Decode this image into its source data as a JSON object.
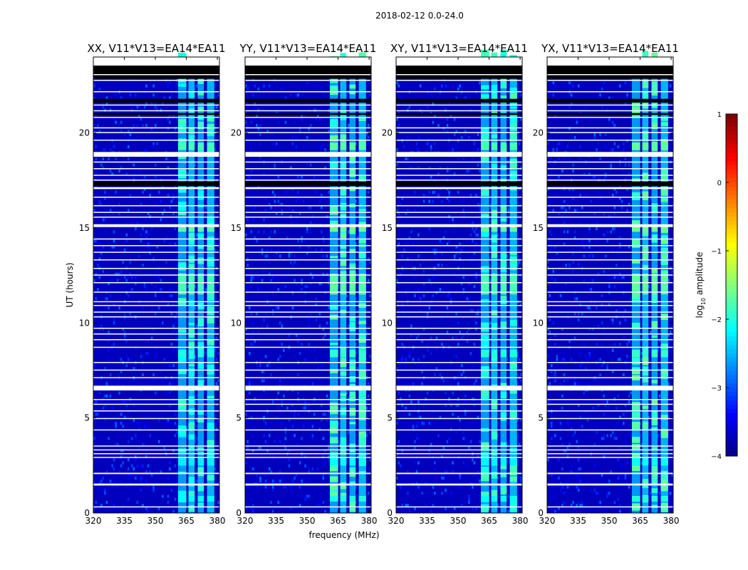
{
  "chart_data": {
    "type": "heatmap",
    "suptitle": "2018-02-12 0.0-24.0",
    "xlabel": "frequency (MHz)",
    "ylabel": "UT (hours)",
    "xlim": [
      320,
      381
    ],
    "ylim": [
      0,
      24
    ],
    "xticks": [
      "320",
      "335",
      "350",
      "365",
      "380"
    ],
    "yticks": [
      "0",
      "5",
      "10",
      "15",
      "20"
    ],
    "xtick_values": [
      320,
      335,
      350,
      365,
      380
    ],
    "ytick_values": [
      0,
      5,
      10,
      15,
      20
    ],
    "panels": [
      {
        "title": "XX, V11*V13=EA14*EA11"
      },
      {
        "title": "YY, V11*V13=EA14*EA11"
      },
      {
        "title": "XY, V11*V13=EA14*EA11"
      },
      {
        "title": "YX, V11*V13=EA14*EA11"
      }
    ],
    "colorbar": {
      "label": "log10 amplitude",
      "label_main": "log",
      "label_sub": "10",
      "label_rest": " amplitude",
      "range": [
        -4,
        1
      ],
      "ticks": [
        "1",
        "0",
        "−1",
        "−2",
        "−3",
        "−4"
      ],
      "tick_values": [
        1,
        0,
        -1,
        -2,
        -3,
        -4
      ],
      "colormap": "jet"
    },
    "background_level": -3.7,
    "rfi_band_mhz": [
      361,
      379
    ],
    "rfi_subbands": [
      [
        361,
        365
      ],
      [
        366,
        369
      ],
      [
        370.5,
        373.5
      ],
      [
        375,
        378.5
      ]
    ],
    "rfi_level": -2.5,
    "strong_rfi_hours": [
      [
        11.5,
        12.6,
        -1.8
      ],
      [
        14.8,
        15.1,
        -1.7
      ],
      [
        19.1,
        19.5,
        -1.8
      ],
      [
        8.2,
        8.6,
        -2.0
      ],
      [
        2.5,
        2.9,
        -2.2
      ],
      [
        0.6,
        0.9,
        -2.1
      ]
    ],
    "flagged_hours": [
      [
        0.3,
        0.35
      ],
      [
        1.45,
        1.55
      ],
      [
        2.05,
        2.12
      ],
      [
        2.9,
        2.95
      ],
      [
        3.1,
        3.15
      ],
      [
        3.3,
        3.35
      ],
      [
        3.5,
        3.55
      ],
      [
        4.35,
        4.4
      ],
      [
        4.95,
        5.0
      ],
      [
        5.35,
        5.4
      ],
      [
        5.7,
        5.75
      ],
      [
        5.95,
        6.0
      ],
      [
        6.45,
        6.7
      ],
      [
        7.1,
        7.15
      ],
      [
        7.5,
        7.55
      ],
      [
        7.9,
        7.95
      ],
      [
        8.7,
        8.75
      ],
      [
        9.1,
        9.15
      ],
      [
        9.4,
        9.45
      ],
      [
        9.7,
        9.75
      ],
      [
        10.3,
        10.35
      ],
      [
        10.55,
        10.6
      ],
      [
        10.9,
        10.95
      ],
      [
        11.1,
        11.15
      ],
      [
        11.6,
        11.65
      ],
      [
        12.1,
        12.15
      ],
      [
        12.5,
        12.55
      ],
      [
        12.85,
        12.9
      ],
      [
        13.3,
        13.35
      ],
      [
        13.7,
        13.75
      ],
      [
        14.05,
        14.1
      ],
      [
        14.4,
        14.45
      ],
      [
        15.05,
        15.2
      ],
      [
        15.55,
        15.6
      ],
      [
        15.8,
        15.85
      ],
      [
        16.15,
        16.2
      ],
      [
        16.6,
        16.65
      ],
      [
        17.05,
        17.15
      ],
      [
        17.5,
        17.55
      ],
      [
        17.75,
        17.8
      ],
      [
        18.1,
        18.15
      ],
      [
        18.45,
        18.5
      ],
      [
        18.75,
        19.0
      ],
      [
        19.6,
        19.65
      ],
      [
        20.0,
        20.05
      ],
      [
        20.25,
        20.3
      ],
      [
        20.8,
        20.85
      ],
      [
        21.15,
        21.2
      ],
      [
        21.45,
        21.5
      ],
      [
        22.15,
        22.2
      ],
      [
        22.75,
        22.8
      ],
      [
        23.05,
        23.1
      ],
      [
        23.55,
        24.0
      ]
    ],
    "black_hours": [
      [
        17.2,
        17.45
      ],
      [
        20.95,
        21.05
      ],
      [
        21.6,
        21.8
      ],
      [
        22.85,
        23.55
      ]
    ]
  }
}
